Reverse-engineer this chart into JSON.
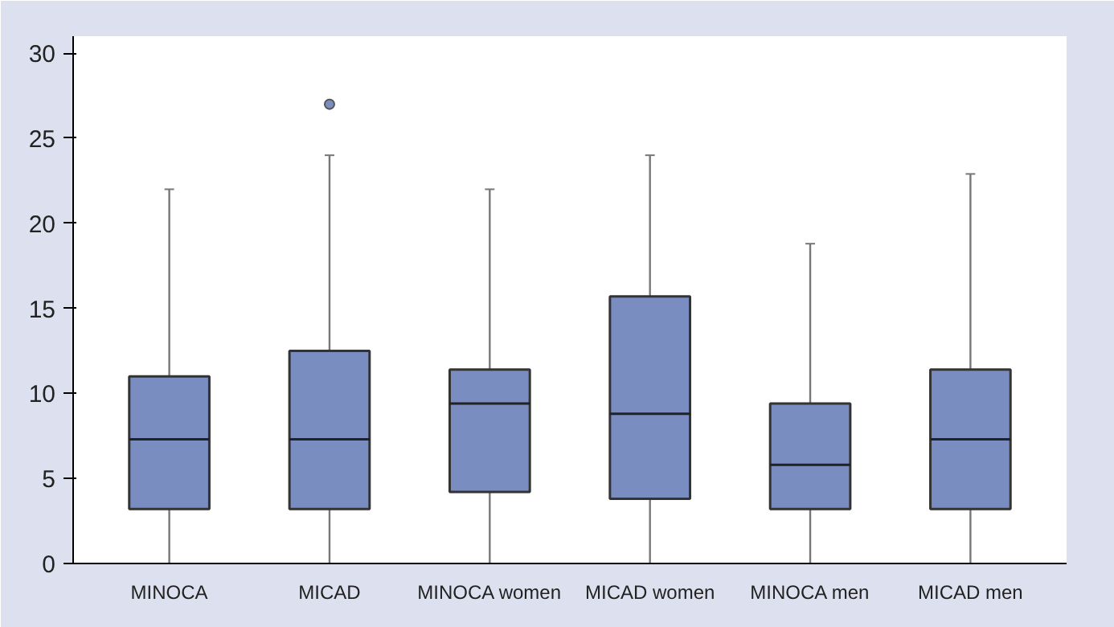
{
  "chart_data": {
    "type": "box",
    "categories": [
      "MINOCA",
      "MICAD",
      "MINOCA women",
      "MICAD women",
      "MINOCA men",
      "MICAD men"
    ],
    "color": "#7a8dc0",
    "boxes": [
      {
        "low": 0,
        "q1": 3.2,
        "median": 7.3,
        "q3": 11,
        "high": 22
      },
      {
        "low": 0,
        "q1": 3.2,
        "median": 7.3,
        "q3": 12.5,
        "high": 24,
        "outliers": [
          27
        ]
      },
      {
        "low": 0,
        "q1": 4.2,
        "median": 9.4,
        "q3": 11.4,
        "high": 22
      },
      {
        "low": 0,
        "q1": 3.8,
        "median": 8.8,
        "q3": 15.7,
        "high": 24
      },
      {
        "low": 0,
        "q1": 3.2,
        "median": 5.8,
        "q3": 9.4,
        "high": 18.8
      },
      {
        "low": 0,
        "q1": 3.2,
        "median": 7.3,
        "q3": 11.4,
        "high": 22.9
      }
    ],
    "ylim": [
      0,
      31
    ],
    "yticks": [
      0,
      5,
      10,
      15,
      20,
      25,
      30
    ],
    "grid": false
  }
}
